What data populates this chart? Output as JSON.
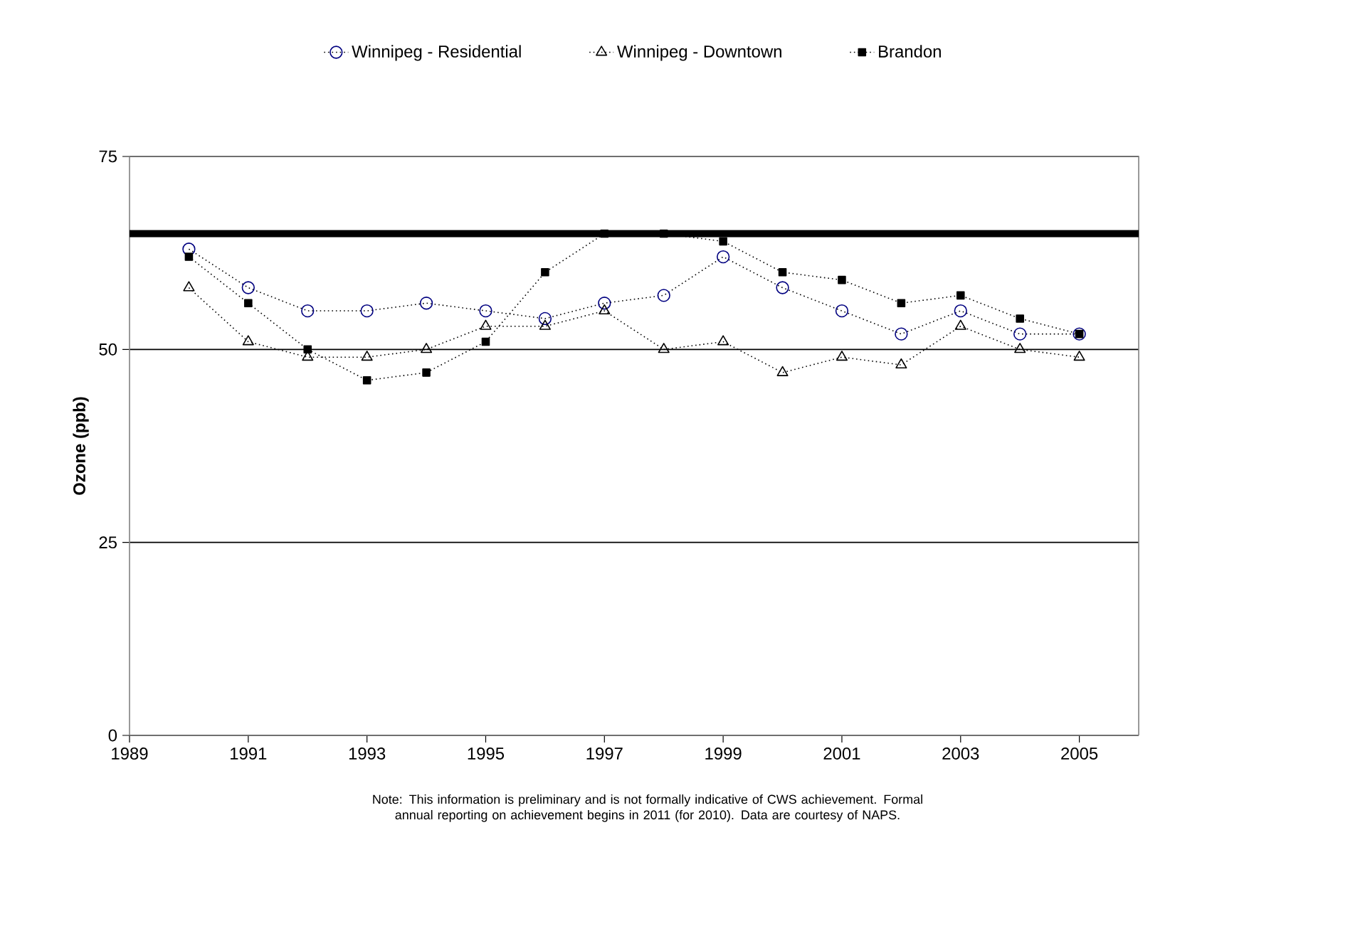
{
  "chart_data": {
    "type": "line",
    "ylabel": "Ozone (ppb)",
    "x": [
      1990,
      1991,
      1992,
      1993,
      1994,
      1995,
      1996,
      1997,
      1998,
      1999,
      2000,
      2001,
      2002,
      2003,
      2004,
      2005
    ],
    "series": [
      {
        "name": "Winnipeg - Residential",
        "color": "#000080",
        "marker": "circle",
        "values": [
          63,
          58,
          55,
          55,
          56,
          55,
          54,
          56,
          57,
          62,
          58,
          55,
          52,
          55,
          52,
          52
        ]
      },
      {
        "name": "Winnipeg - Downtown",
        "color": "#000000",
        "marker": "triangle",
        "values": [
          58,
          51,
          49,
          49,
          50,
          53,
          53,
          55,
          50,
          51,
          47,
          49,
          48,
          53,
          50,
          49
        ]
      },
      {
        "name": "Brandon",
        "color": "#000000",
        "marker": "square",
        "values": [
          62,
          56,
          50,
          46,
          47,
          51,
          60,
          65,
          65,
          64,
          60,
          59,
          56,
          57,
          54,
          52
        ]
      }
    ],
    "xlim": [
      1989,
      2006
    ],
    "xticks": [
      1989,
      1991,
      1993,
      1995,
      1997,
      1999,
      2001,
      2003,
      2005
    ],
    "ylim": [
      0,
      75
    ],
    "yticks": [
      0,
      25,
      50,
      75
    ],
    "grid": "y",
    "legend": "top",
    "line_style": "dotted",
    "ref_lines": [
      {
        "axis": "y",
        "value": 65,
        "color": "#000000"
      }
    ],
    "annotations": [
      "Note: This information is preliminary and is not formally indicative of CWS achievement.  Formal annual reporting on achievement begins in 2011 (for 2010).  Data are courtesy of NAPS."
    ]
  }
}
